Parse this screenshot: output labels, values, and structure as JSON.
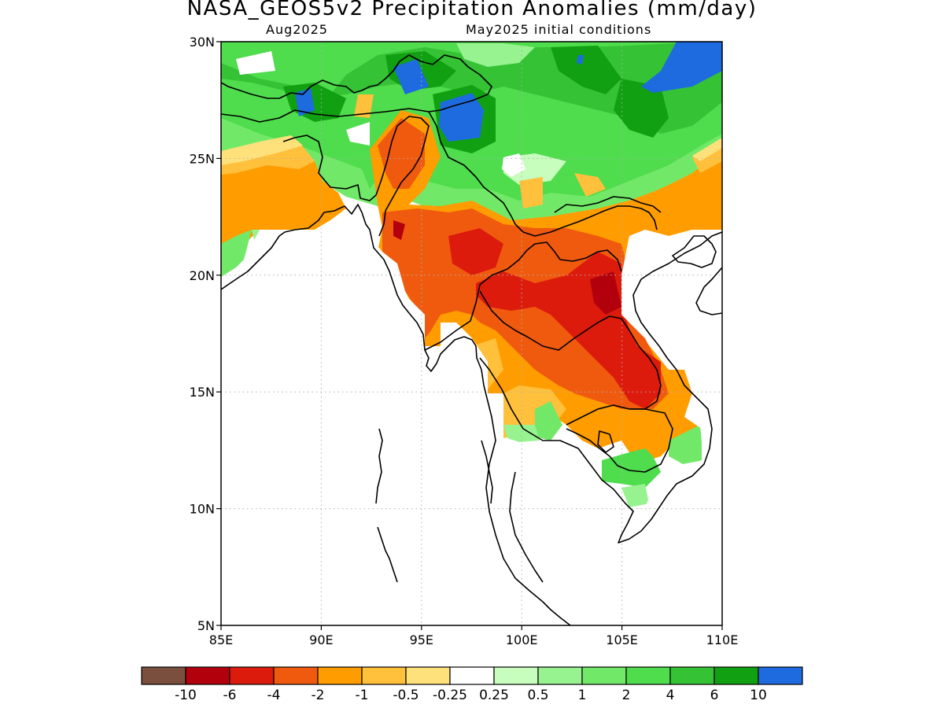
{
  "title": "NASA_GEOS5v2 Precipitation Anomalies (mm/day)",
  "subtitle_left": "Aug2025",
  "subtitle_right": "May2025 initial conditions",
  "axes": {
    "lon_ticks": [
      "85E",
      "90E",
      "95E",
      "100E",
      "105E",
      "110E"
    ],
    "lat_ticks": [
      "30N",
      "25N",
      "20N",
      "15N",
      "10N",
      "5N"
    ],
    "lon_range": [
      85,
      110
    ],
    "lat_range": [
      5,
      30
    ]
  },
  "colorbar": {
    "colors": [
      "#7a4f3e",
      "#b3000d",
      "#dc1b0d",
      "#f05a0e",
      "#ff9d00",
      "#ffc03c",
      "#ffe17c",
      "#ffffff",
      "#c7fdbd",
      "#97f290",
      "#72e868",
      "#4fdc4d",
      "#35c235",
      "#11a011",
      "#1e6be0"
    ],
    "labels": [
      "-10",
      "-6",
      "-4",
      "-2",
      "-1",
      "-0.5",
      "-0.25",
      "0.25",
      "0.5",
      "1",
      "2",
      "4",
      "6",
      "10"
    ]
  }
}
